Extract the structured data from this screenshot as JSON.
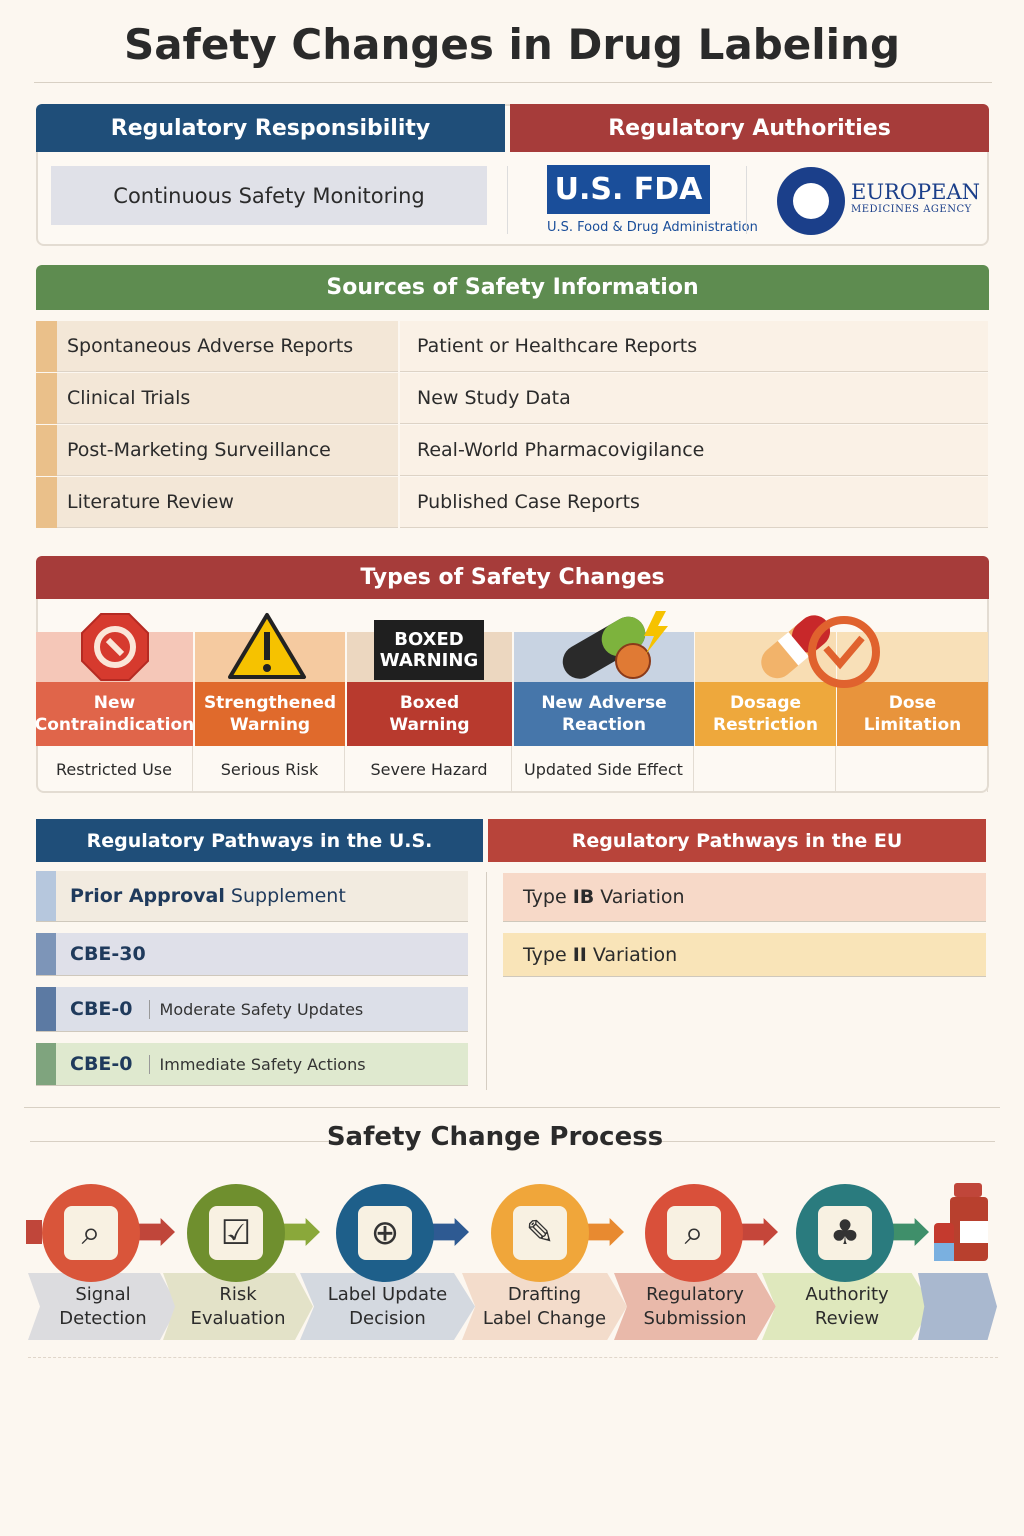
{
  "title": "Safety Changes in Drug Labeling",
  "responsibility": {
    "header": "Regulatory Responsibility",
    "item": "Continuous Safety Monitoring"
  },
  "authorities": {
    "header": "Regulatory Authorities",
    "fda_logo": "U.S. FDA",
    "fda_name": "U.S. Food & Drug Administration",
    "ema_line1": "EUROPEAN",
    "ema_line2": "MEDICINES AGENCY"
  },
  "sources": {
    "header": "Sources of Safety Information",
    "rows": [
      {
        "source": "Spontaneous Adverse Reports",
        "detail": "Patient or Healthcare Reports"
      },
      {
        "source": "Clinical Trials",
        "detail": "New Study Data"
      },
      {
        "source": "Post-Marketing Surveillance",
        "detail": "Real-World Pharmacovigilance"
      },
      {
        "source": "Literature Review",
        "detail": "Published Case Reports"
      }
    ]
  },
  "types": {
    "header": "Types of Safety Changes",
    "boxed_badge_line1": "BOXED",
    "boxed_badge_line2": "WARNING",
    "items": [
      {
        "label1": "New",
        "label2": "Contraindication",
        "desc": "Restricted Use",
        "color": "#e0654a",
        "icon": "stop-sign-icon"
      },
      {
        "label1": "Strengthened",
        "label2": "Warning",
        "desc": "Serious Risk",
        "color": "#e06a2c",
        "icon": "warning-triangle-icon"
      },
      {
        "label1": "Boxed",
        "label2": "Warning",
        "desc": "Severe Hazard",
        "color": "#b83a2e",
        "icon": "boxed-warning-icon"
      },
      {
        "label1": "New Adverse",
        "label2": "Reaction",
        "desc": "Updated Side Effect",
        "color": "#4676aa",
        "icon": "pill-lightning-icon"
      },
      {
        "label1": "Dosage",
        "label2": "Restriction",
        "desc": "",
        "color": "#eea83c",
        "icon": "capsule-icon"
      },
      {
        "label1": "Dose",
        "label2": "Limitation",
        "desc": "",
        "color": "#e8943c",
        "icon": "clock-limit-icon"
      }
    ]
  },
  "us_pathways": {
    "header": "Regulatory Pathways in the U.S.",
    "items": [
      {
        "bold": "Prior Approval",
        "rest": "Supplement",
        "sub": ""
      },
      {
        "bold": "CBE-30",
        "rest": "",
        "sub": ""
      },
      {
        "bold": "CBE-0",
        "rest": "",
        "sub": "Moderate Safety Updates"
      },
      {
        "bold": "CBE-0",
        "rest": "",
        "sub": "Immediate Safety Actions"
      }
    ]
  },
  "eu_pathways": {
    "header": "Regulatory Pathways in the EU",
    "items": [
      {
        "pre": "Type ",
        "bold": "IB",
        "rest": " Variation"
      },
      {
        "pre": "Type ",
        "bold": "II",
        "rest": " Variation"
      }
    ]
  },
  "process": {
    "header": "Safety Change Process",
    "steps": [
      {
        "line1": "Signal",
        "line2": "Detection",
        "icon": "magnifier-signal-icon"
      },
      {
        "line1": "Risk",
        "line2": "Evaluation",
        "icon": "clipboard-checklist-icon"
      },
      {
        "line1": "Label Update",
        "line2": "Decision",
        "icon": "document-globe-icon"
      },
      {
        "line1": "Drafting",
        "line2": "Label Change",
        "icon": "document-pencil-icon"
      },
      {
        "line1": "Regulatory",
        "line2": "Submission",
        "icon": "calculator-magnifier-icon"
      },
      {
        "line1": "Authority",
        "line2": "Review",
        "icon": "bottles-plant-icon"
      }
    ]
  },
  "colors": {
    "blue": "#1f4e79",
    "red": "#a63c3a",
    "green": "#5e8c50"
  }
}
